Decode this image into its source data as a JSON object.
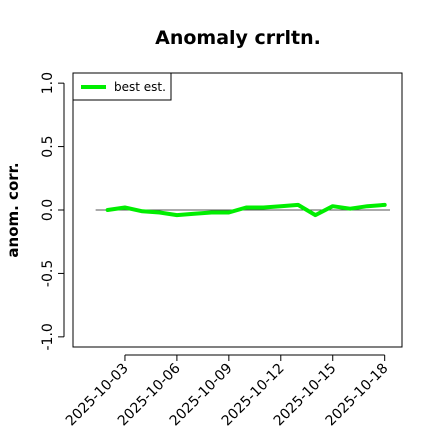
{
  "chart_data": {
    "type": "line",
    "title": "Anomaly crrltn.",
    "xlabel": "",
    "ylabel": "anom. corr.",
    "ylim": [
      -1.0,
      1.0
    ],
    "yticks": [
      "-1.0",
      "-0.5",
      "0.0",
      "0.5",
      "1.0"
    ],
    "ytick_values": [
      -1.0,
      -0.5,
      0.0,
      0.5,
      1.0
    ],
    "xticks": [
      "2025-10-03",
      "2025-10-06",
      "2025-10-09",
      "2025-10-12",
      "2025-10-15",
      "2025-10-18"
    ],
    "xlim": [
      "2025-09-30",
      "2025-10-19"
    ],
    "reference_line": 0.0,
    "legend": {
      "position": "top-left"
    },
    "grid": false,
    "series": [
      {
        "name": "best est.",
        "color": "#00ee00",
        "x": [
          "2025-10-02",
          "2025-10-03",
          "2025-10-04",
          "2025-10-05",
          "2025-10-06",
          "2025-10-07",
          "2025-10-08",
          "2025-10-09",
          "2025-10-10",
          "2025-10-11",
          "2025-10-12",
          "2025-10-13",
          "2025-10-14",
          "2025-10-15",
          "2025-10-16",
          "2025-10-17",
          "2025-10-18"
        ],
        "y": [
          0.0,
          0.02,
          -0.01,
          -0.02,
          -0.04,
          -0.03,
          -0.02,
          -0.02,
          0.02,
          0.02,
          0.03,
          0.04,
          -0.04,
          0.03,
          0.01,
          0.03,
          0.04
        ]
      }
    ]
  }
}
